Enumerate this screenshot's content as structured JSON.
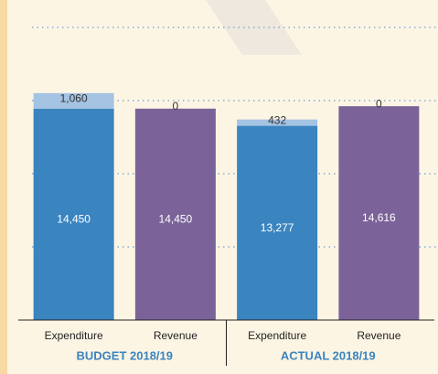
{
  "chart_data": {
    "type": "bar",
    "groups": [
      "BUDGET 2018/19",
      "ACTUAL 2018/19"
    ],
    "categories": [
      "Expenditure",
      "Revenue",
      "Expenditure",
      "Revenue"
    ],
    "series": [
      {
        "color": "#3a84c0",
        "values": [
          14450,
          14450,
          13277,
          14616
        ],
        "value_labels": [
          "14,450",
          "14,450",
          "13,277",
          "14,616"
        ]
      },
      {
        "color": "#a5c3e2",
        "values": [
          1060,
          0,
          432,
          0
        ],
        "value_labels": [
          "1,060",
          "0",
          "432",
          "0"
        ]
      }
    ],
    "ylim": [
      0,
      20000
    ],
    "yticks": [
      5000,
      10000,
      15000,
      20000
    ],
    "grid": true,
    "group_color": "#3a84c0"
  }
}
